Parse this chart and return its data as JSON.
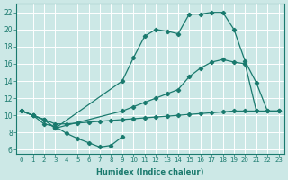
{
  "xlabel": "Humidex (Indice chaleur)",
  "background_color": "#cce8e6",
  "grid_color": "#ffffff",
  "line_color": "#1a7a6e",
  "xlim": [
    -0.5,
    23.5
  ],
  "ylim": [
    5.5,
    23.0
  ],
  "xticks": [
    0,
    1,
    2,
    3,
    4,
    5,
    6,
    7,
    8,
    9,
    10,
    11,
    12,
    13,
    14,
    15,
    16,
    17,
    18,
    19,
    20,
    21,
    22,
    23
  ],
  "yticks": [
    6,
    8,
    10,
    12,
    14,
    16,
    18,
    20,
    22
  ],
  "curve_top_x": [
    0,
    1,
    2,
    3,
    9,
    10,
    11,
    12,
    13,
    14,
    15,
    16,
    17,
    18,
    19,
    20,
    21,
    22,
    23
  ],
  "curve_top_y": [
    10.5,
    10.0,
    9.5,
    8.5,
    14.0,
    16.7,
    19.2,
    20.0,
    19.8,
    19.5,
    21.8,
    21.8,
    22.0,
    22.0,
    20.0,
    16.3,
    13.8,
    10.5,
    10.5
  ],
  "curve_mid_x": [
    0,
    1,
    2,
    3,
    9,
    10,
    11,
    12,
    13,
    14,
    15,
    16,
    17,
    18,
    19,
    20,
    21
  ],
  "curve_mid_y": [
    10.5,
    10.0,
    9.5,
    8.5,
    10.5,
    11.0,
    11.5,
    12.0,
    12.5,
    13.0,
    14.5,
    15.5,
    16.2,
    16.5,
    16.2,
    16.0,
    10.5
  ],
  "curve_flat_x": [
    0,
    1,
    2,
    3,
    4,
    5,
    6,
    7,
    8,
    9,
    10,
    11,
    12,
    13,
    14,
    15,
    16,
    17,
    18,
    19,
    20,
    21,
    22,
    23
  ],
  "curve_flat_y": [
    10.5,
    10.0,
    9.5,
    9.0,
    9.0,
    9.1,
    9.2,
    9.3,
    9.4,
    9.5,
    9.6,
    9.7,
    9.8,
    9.9,
    10.0,
    10.1,
    10.2,
    10.3,
    10.4,
    10.5,
    10.5,
    10.5,
    10.5,
    10.5
  ],
  "curve_dip_x": [
    0,
    1,
    2,
    3,
    4,
    5,
    6,
    7,
    8,
    9
  ],
  "curve_dip_y": [
    10.5,
    10.0,
    9.0,
    8.7,
    7.9,
    7.3,
    6.8,
    6.3,
    6.5,
    7.5
  ]
}
